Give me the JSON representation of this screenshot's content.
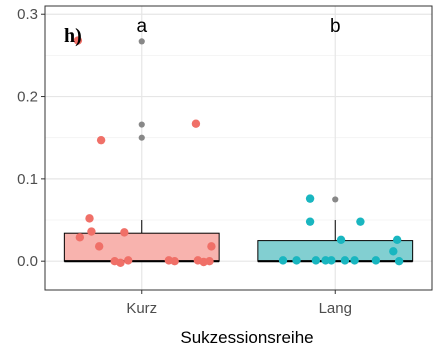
{
  "chart_data": {
    "type": "box",
    "panel_label": "h)",
    "xlabel": "Sukzessionsreihe",
    "ylabel": "",
    "ylim": [
      -0.035,
      0.31
    ],
    "yticks": [
      0.0,
      0.1,
      0.2,
      0.3
    ],
    "ytick_labels": [
      "0.0",
      "0.1",
      "0.2",
      "0.3"
    ],
    "grid": true,
    "categories": [
      "Kurz",
      "Lang"
    ],
    "significance_letters": [
      "a",
      "b"
    ],
    "colors": {
      "Kurz": {
        "fill": "#f8b3ae",
        "point": "#f07068"
      },
      "Lang": {
        "fill": "#82cfd1",
        "point": "#19b6c0"
      },
      "outlier": "#888888",
      "box_stroke": "#000000"
    },
    "boxes": [
      {
        "category": "Kurz",
        "min": 0.0,
        "q1": 0.0,
        "median": 0.0,
        "q3": 0.034,
        "max": 0.05,
        "outliers": [
          0.267,
          0.166,
          0.15
        ]
      },
      {
        "category": "Lang",
        "min": 0.0,
        "q1": 0.0,
        "median": 0.0,
        "q3": 0.025,
        "max": 0.05,
        "outliers": [
          0.075
        ]
      }
    ],
    "points": [
      {
        "category": "Kurz",
        "jitter": -0.33,
        "y": 0.268
      },
      {
        "category": "Kurz",
        "jitter": 0.28,
        "y": 0.167
      },
      {
        "category": "Kurz",
        "jitter": -0.21,
        "y": 0.147
      },
      {
        "category": "Kurz",
        "jitter": -0.27,
        "y": 0.052
      },
      {
        "category": "Kurz",
        "jitter": -0.26,
        "y": 0.036
      },
      {
        "category": "Kurz",
        "jitter": -0.09,
        "y": 0.035
      },
      {
        "category": "Kurz",
        "jitter": -0.32,
        "y": 0.029
      },
      {
        "category": "Kurz",
        "jitter": -0.22,
        "y": 0.018
      },
      {
        "category": "Kurz",
        "jitter": 0.36,
        "y": 0.018
      },
      {
        "category": "Kurz",
        "jitter": -0.14,
        "y": 0.0
      },
      {
        "category": "Kurz",
        "jitter": -0.11,
        "y": -0.002
      },
      {
        "category": "Kurz",
        "jitter": -0.07,
        "y": 0.001
      },
      {
        "category": "Kurz",
        "jitter": 0.14,
        "y": 0.001
      },
      {
        "category": "Kurz",
        "jitter": 0.17,
        "y": 0.0
      },
      {
        "category": "Kurz",
        "jitter": 0.29,
        "y": 0.001
      },
      {
        "category": "Kurz",
        "jitter": 0.32,
        "y": -0.001
      },
      {
        "category": "Kurz",
        "jitter": 0.35,
        "y": 0.0
      },
      {
        "category": "Lang",
        "jitter": -0.13,
        "y": 0.076
      },
      {
        "category": "Lang",
        "jitter": -0.13,
        "y": 0.048
      },
      {
        "category": "Lang",
        "jitter": 0.13,
        "y": 0.048
      },
      {
        "category": "Lang",
        "jitter": 0.03,
        "y": 0.026
      },
      {
        "category": "Lang",
        "jitter": 0.32,
        "y": 0.026
      },
      {
        "category": "Lang",
        "jitter": 0.3,
        "y": 0.012
      },
      {
        "category": "Lang",
        "jitter": -0.27,
        "y": 0.001
      },
      {
        "category": "Lang",
        "jitter": -0.2,
        "y": 0.001
      },
      {
        "category": "Lang",
        "jitter": -0.1,
        "y": 0.001
      },
      {
        "category": "Lang",
        "jitter": -0.05,
        "y": 0.001
      },
      {
        "category": "Lang",
        "jitter": -0.02,
        "y": 0.001
      },
      {
        "category": "Lang",
        "jitter": 0.05,
        "y": 0.001
      },
      {
        "category": "Lang",
        "jitter": 0.1,
        "y": 0.001
      },
      {
        "category": "Lang",
        "jitter": 0.21,
        "y": 0.001
      },
      {
        "category": "Lang",
        "jitter": 0.33,
        "y": 0.0
      }
    ]
  }
}
